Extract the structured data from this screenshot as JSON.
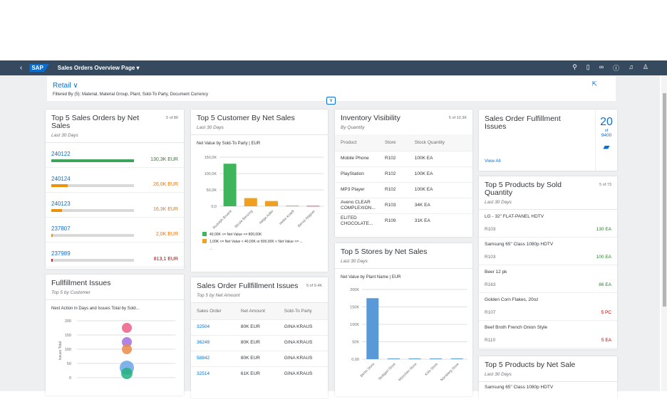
{
  "shell": {
    "title": "Sales Orders Overview Page ▾",
    "logo": "SAP",
    "icons": [
      "search-icon",
      "document-icon",
      "binoculars-icon",
      "help-icon",
      "bell-icon",
      "user-icon"
    ]
  },
  "header": {
    "variant": "Retail ∨",
    "filtered_by": "Filtered By (5): Material, Material Group, Plant, Sold-To Party, Document Currency"
  },
  "colors": {
    "shell": "#354a5f",
    "link": "#0a6ed1",
    "good": "#2b7d2b",
    "warn": "#e9730c",
    "bad": "#bb0000"
  },
  "sales_orders": {
    "title": "Top 5 Sales Orders by Net Sales",
    "subtitle": "Last 30 Days",
    "count": "5 of 80",
    "items": [
      {
        "id": "240122",
        "amount": "130,3K EUR",
        "fraction": 1.0,
        "color": "#3fa45b",
        "text_color": "#2b7d2b"
      },
      {
        "id": "240124",
        "amount": "26,0K EUR",
        "fraction": 0.2,
        "color": "#e9920c",
        "text_color": "#e9730c"
      },
      {
        "id": "240123",
        "amount": "16,3K EUR",
        "fraction": 0.125,
        "color": "#e9920c",
        "text_color": "#e9730c"
      },
      {
        "id": "237807",
        "amount": "2,0K EUR",
        "fraction": 0.02,
        "color": "#e9920c",
        "text_color": "#e9730c"
      },
      {
        "id": "237989",
        "amount": "813,1 EUR",
        "fraction": 0.01,
        "color": "#d32030",
        "text_color": "#bb0000"
      }
    ]
  },
  "customers": {
    "title": "Top 5 Customer By Net Sales",
    "subtitle": "Last 30 Days",
    "legend_more": "..."
  },
  "fulfillment": {
    "title": "Fullfillment Issues",
    "subtitle": "Top 5 by Customer"
  },
  "so_issues": {
    "title": "Sales Order Fullfillment Issues",
    "subtitle": "Top 5 by Net Amount",
    "count": "5 of 9.4K",
    "columns": [
      "Sales Order",
      "Net Amount",
      "Sold-To Party"
    ],
    "rows": [
      [
        "32504",
        "80K EUR",
        "GINA KRAUS"
      ],
      [
        "36249",
        "80K EUR",
        "GINA KRAUS"
      ],
      [
        "58842",
        "80K EUR",
        "GINA KRAUS"
      ],
      [
        "32514",
        "61K EUR",
        "GINA KRAUS"
      ]
    ]
  },
  "inventory": {
    "title": "Inventory Visibility",
    "subtitle": "By Quantity",
    "count": "5 of 10.3K",
    "columns": [
      "Product",
      "Store",
      "Stock Quantity"
    ],
    "rows": [
      [
        "Mobile Phone",
        "R102",
        "100K EA"
      ],
      [
        "PlayStation",
        "R102",
        "100K EA"
      ],
      [
        "MP3 Player",
        "R102",
        "100K EA"
      ],
      [
        "Aveno CLEAR COMPLEXION...",
        "R103",
        "34K EA"
      ],
      [
        "ELITED CHOCOLATE...",
        "R109",
        "31K EA"
      ]
    ]
  },
  "stores": {
    "title": "Top 5 Stores by Net Sales",
    "subtitle": "Last 30 Days"
  },
  "kpi": {
    "title": "Sales Order Fulfillment Issues",
    "value": "20",
    "of": "of",
    "total": "9400",
    "view_all": "View All"
  },
  "products_qty": {
    "title": "Top 5 Products by Sold Quantity",
    "subtitle": "Last 30 Days",
    "count": "5 of 73",
    "items": [
      {
        "name": "LG - 32\" FLAT-PANEL HDTV",
        "store": "R103",
        "qty": "130 EA",
        "color": "#2b7d2b"
      },
      {
        "name": "Samsung 65\" Class 1080p HDTV",
        "store": "R103",
        "qty": "100 EA",
        "color": "#2b7d2b"
      },
      {
        "name": "Beer 12 pk",
        "store": "R163",
        "qty": "86 EA",
        "color": "#2b7d2b"
      },
      {
        "name": "Golden Corn Flakes, 20oz",
        "store": "R107",
        "qty": "5 PC",
        "color": "#bb0000"
      },
      {
        "name": "Beef Broth French Onion Style",
        "store": "R110",
        "qty": "5 EA",
        "color": "#bb0000"
      }
    ]
  },
  "products_net": {
    "title": "Top 5 Products by Net Sale",
    "subtitle": "Last 30 Days",
    "first_item": "Samsung 65\" Class 1080p HDTV"
  },
  "chart_data": [
    {
      "type": "bar",
      "title": "Net Value by Sold-To Party | EUR",
      "categories": [
        "Rudolph Brueck",
        "Nicole Benzing",
        "Helge Adler",
        "Heike Kraeft",
        "Bernd Wagner"
      ],
      "values": [
        130000,
        25000,
        16000,
        2000,
        1500
      ],
      "colors": [
        "#3fb55b",
        "#f0a020",
        "#f0a020",
        "#f0a020",
        "#e8506a"
      ],
      "ylim": [
        0,
        150000
      ],
      "yticks": [
        "0,0",
        "50,0K",
        "100,0K",
        "150,0K"
      ],
      "grid": true,
      "legend": [
        {
          "label": "40,00K <= Net Value <= 800,00K",
          "color": "#3fb55b"
        },
        {
          "label": "1,00K <= Net Value < 40,00K or 800,00K < Net Value <= ...",
          "color": "#f0a020"
        }
      ],
      "legend_position": "bottom"
    },
    {
      "type": "scatter",
      "title": "Next Action in Days and Issues Total by Sold...",
      "ylabel": "Issues Total",
      "ylim": [
        0,
        200
      ],
      "yticks": [
        "0",
        "50",
        "100",
        "150",
        "200"
      ],
      "grid": true,
      "points": [
        {
          "y": 175,
          "color": "#ec5f87"
        },
        {
          "y": 125,
          "color": "#a36ee0"
        },
        {
          "y": 100,
          "color": "#ec8a4a"
        },
        {
          "y": 35,
          "color": "#6aa6e6"
        },
        {
          "y": 15,
          "color": "#23b07f"
        }
      ]
    },
    {
      "type": "bar",
      "title": "Net Value by Plant Name | EUR",
      "categories": [
        "Berlin Store",
        "Stuttgart Store",
        "München Store",
        "Köln Store",
        "Nürnberg Store"
      ],
      "values": [
        175000,
        2000,
        2000,
        2000,
        2000
      ],
      "color": "#5a99d8",
      "ylim": [
        0,
        200000
      ],
      "yticks": [
        "0,00",
        "50K",
        "100K",
        "150K",
        "200K"
      ],
      "grid": true
    }
  ]
}
